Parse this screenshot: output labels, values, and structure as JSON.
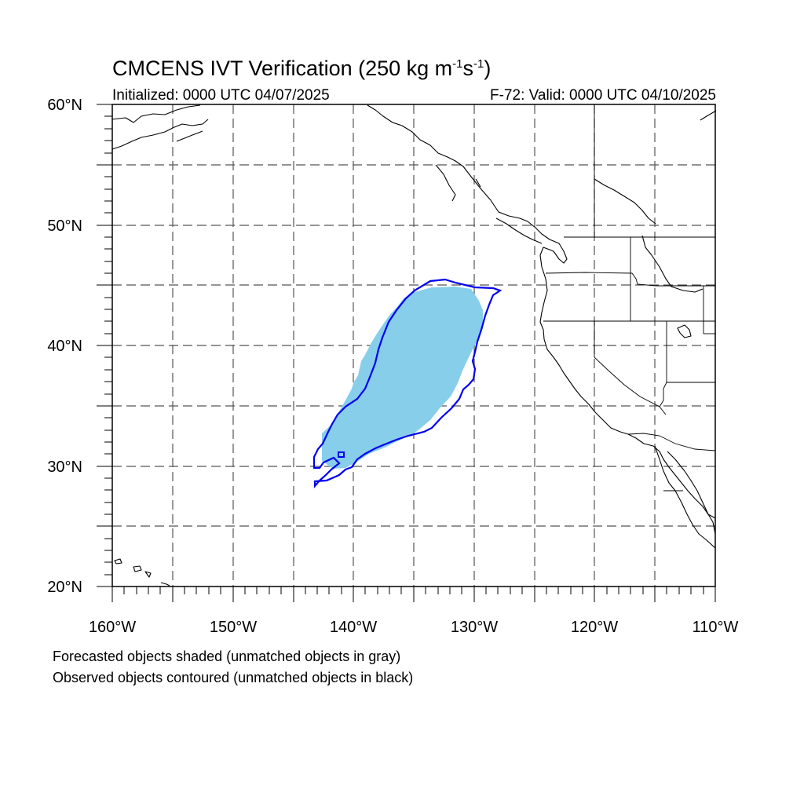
{
  "title": {
    "prefix": "CMCENS IVT Verification (250 kg m",
    "exp1": "-1",
    "mid": "s",
    "exp2": "-1",
    "suffix": ")"
  },
  "initialized": "Initialized: 0000 UTC 04/07/2025",
  "valid": "F-72: Valid: 0000 UTC 04/10/2025",
  "lat_labels": [
    "60°N",
    "50°N",
    "40°N",
    "30°N",
    "20°N"
  ],
  "lon_labels": [
    "160°W",
    "150°W",
    "140°W",
    "130°W",
    "120°W",
    "110°W"
  ],
  "notes": [
    "Forecasted objects shaded (unmatched objects in gray)",
    "Observed objects contoured (unmatched objects in black)"
  ],
  "colors": {
    "forecast_fill": "#87ceeb",
    "observed_contour": "#0000ee",
    "coastline": "#000000",
    "gridline": "#555555"
  },
  "map": {
    "lon_range": [
      -160,
      -110
    ],
    "lat_range": [
      20,
      60
    ],
    "grid_spacing_deg": 5
  }
}
